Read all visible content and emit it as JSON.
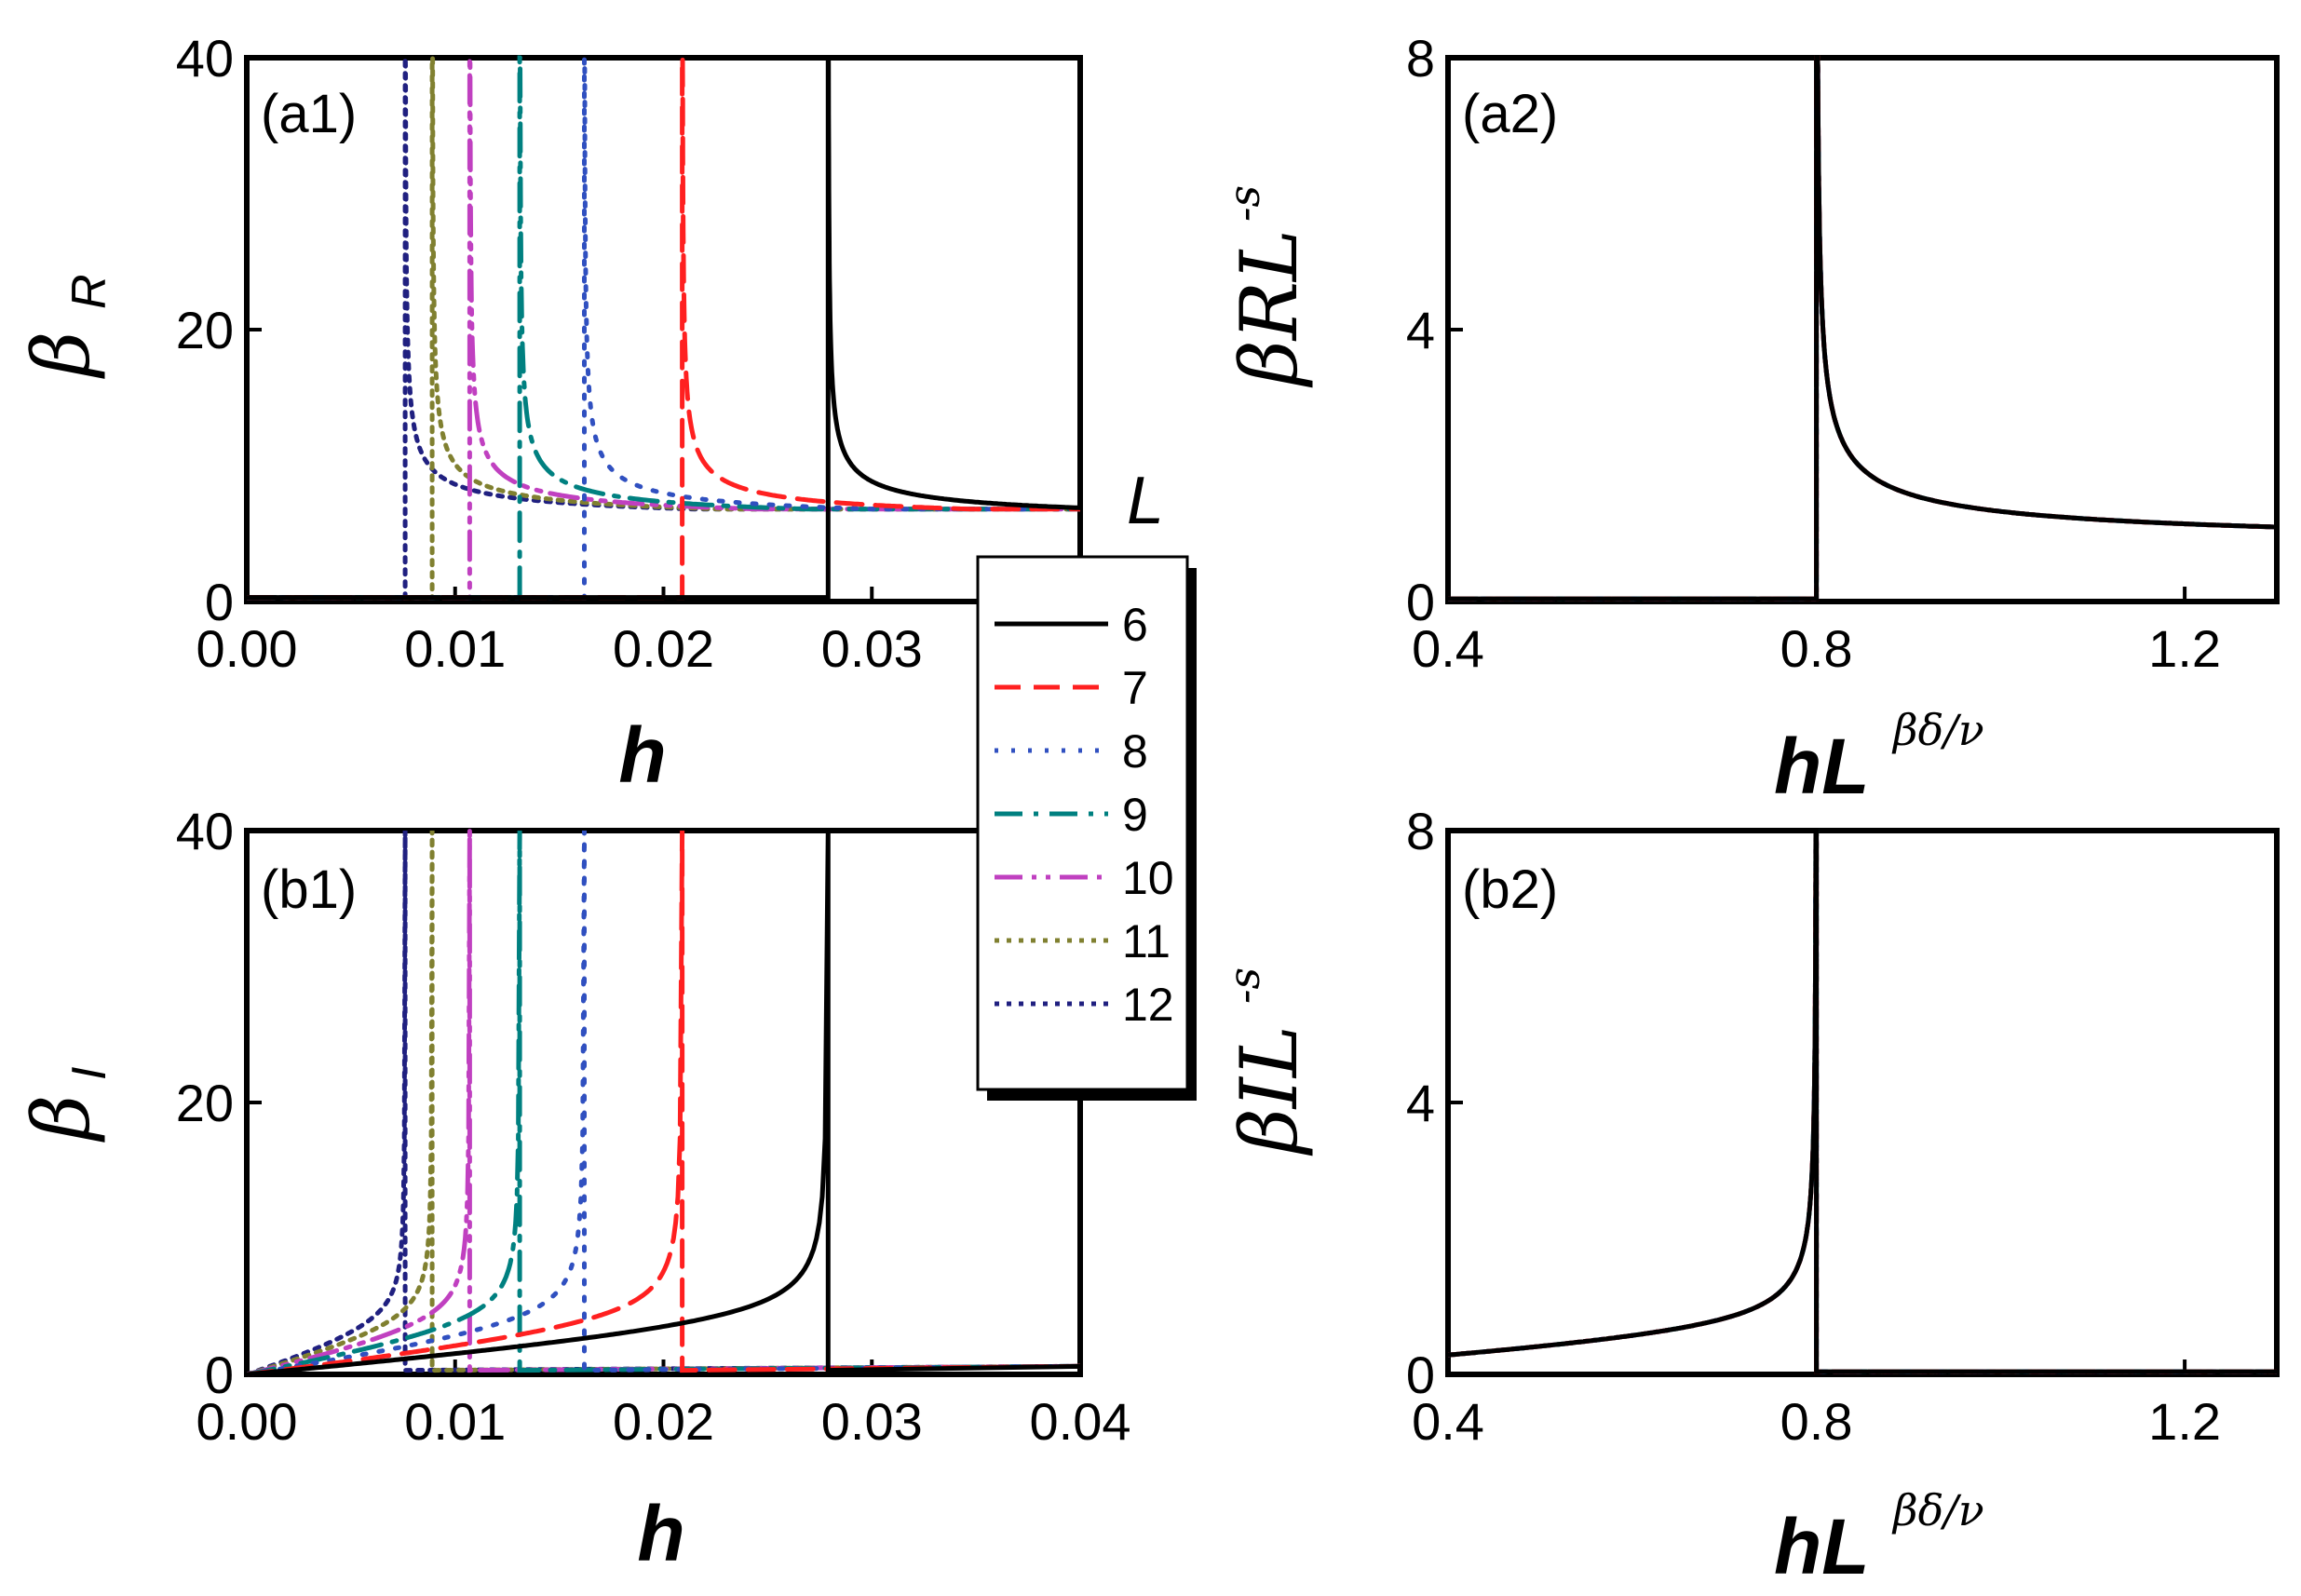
{
  "chart_data": [
    {
      "id": "a1",
      "type": "line",
      "panel_label": "(a1)",
      "xlabel": "h",
      "ylabel": "β",
      "ylabel_sub": "R",
      "xlim": [
        0,
        0.04
      ],
      "ylim": [
        0,
        40
      ],
      "xticks": [
        0,
        0.01,
        0.02,
        0.03
      ],
      "xtick_labels": [
        "0.00",
        "0.01",
        "0.02",
        "0.03"
      ],
      "yticks": [
        0,
        20,
        40
      ],
      "ytick_labels": [
        "0",
        "20",
        "40"
      ],
      "curve_kind": "real",
      "series": [
        {
          "name": "6",
          "hc": 0.0279,
          "A": 40,
          "B": 5.5
        },
        {
          "name": "7",
          "hc": 0.0209,
          "A": 40,
          "B": 5.5
        },
        {
          "name": "8",
          "hc": 0.0162,
          "A": 40,
          "B": 5.5
        },
        {
          "name": "9",
          "hc": 0.0131,
          "A": 40,
          "B": 5.5
        },
        {
          "name": "10",
          "hc": 0.0107,
          "A": 40,
          "B": 5.5
        },
        {
          "name": "11",
          "hc": 0.0089,
          "A": 40,
          "B": 5.5
        },
        {
          "name": "12",
          "hc": 0.0076,
          "A": 40,
          "B": 5.5
        }
      ]
    },
    {
      "id": "a2",
      "type": "line",
      "panel_label": "(a2)",
      "xlabel": "hL",
      "xlabel_sup": "βδ/ν",
      "ylabel": "βRL",
      "ylabel_sup": "-s",
      "xlim": [
        0.4,
        1.3
      ],
      "ylim": [
        0,
        8
      ],
      "xticks": [
        0.4,
        0.8,
        1.2
      ],
      "xtick_labels": [
        "0.4",
        "0.8",
        "1.2"
      ],
      "yticks": [
        0,
        4,
        8
      ],
      "ytick_labels": [
        "0",
        "4",
        "8"
      ],
      "curve_kind": "real-collapse",
      "collapse": {
        "xc": 0.8,
        "A": 1.0
      }
    },
    {
      "id": "b1",
      "type": "line",
      "panel_label": "(b1)",
      "xlabel": "h",
      "ylabel": "β",
      "ylabel_sub": "I",
      "xlim": [
        0,
        0.04
      ],
      "ylim": [
        0,
        40
      ],
      "xticks": [
        0,
        0.01,
        0.02,
        0.03,
        0.04
      ],
      "xtick_labels": [
        "0.00",
        "0.01",
        "0.02",
        "0.03",
        "0.04"
      ],
      "yticks": [
        0,
        20,
        40
      ],
      "ytick_labels": [
        "0",
        "20",
        "40"
      ],
      "curve_kind": "imag",
      "series": [
        {
          "name": "6",
          "hc": 0.0279,
          "A": 40,
          "B": 5.5
        },
        {
          "name": "7",
          "hc": 0.0209,
          "A": 40,
          "B": 5.5
        },
        {
          "name": "8",
          "hc": 0.0162,
          "A": 40,
          "B": 5.5
        },
        {
          "name": "9",
          "hc": 0.0131,
          "A": 40,
          "B": 5.5
        },
        {
          "name": "10",
          "hc": 0.0107,
          "A": 40,
          "B": 5.5
        },
        {
          "name": "11",
          "hc": 0.0089,
          "A": 40,
          "B": 5.5
        },
        {
          "name": "12",
          "hc": 0.0076,
          "A": 40,
          "B": 5.5
        }
      ]
    },
    {
      "id": "b2",
      "type": "line",
      "panel_label": "(b2)",
      "xlabel": "hL",
      "xlabel_sup": "βδ/ν",
      "ylabel": "βIL",
      "ylabel_sup": "-s",
      "xlim": [
        0.4,
        1.3
      ],
      "ylim": [
        0,
        8
      ],
      "xticks": [
        0.4,
        0.8,
        1.2
      ],
      "xtick_labels": [
        "0.4",
        "0.8",
        "1.2"
      ],
      "yticks": [
        0,
        4,
        8
      ],
      "ytick_labels": [
        "0",
        "4",
        "8"
      ],
      "curve_kind": "imag-collapse",
      "collapse": {
        "xc": 0.8,
        "A": 1.0
      }
    }
  ],
  "legend": {
    "title": "L",
    "entries": [
      {
        "label": "6",
        "color": "#000000",
        "dash": "solid"
      },
      {
        "label": "7",
        "color": "#ff2020",
        "dash": "dash"
      },
      {
        "label": "8",
        "color": "#3050c0",
        "dash": "dot"
      },
      {
        "label": "9",
        "color": "#008080",
        "dash": "dashdot"
      },
      {
        "label": "10",
        "color": "#c040c0",
        "dash": "dashdotdot"
      },
      {
        "label": "11",
        "color": "#808030",
        "dash": "shortdot"
      },
      {
        "label": "12",
        "color": "#202080",
        "dash": "shortdot"
      }
    ]
  }
}
